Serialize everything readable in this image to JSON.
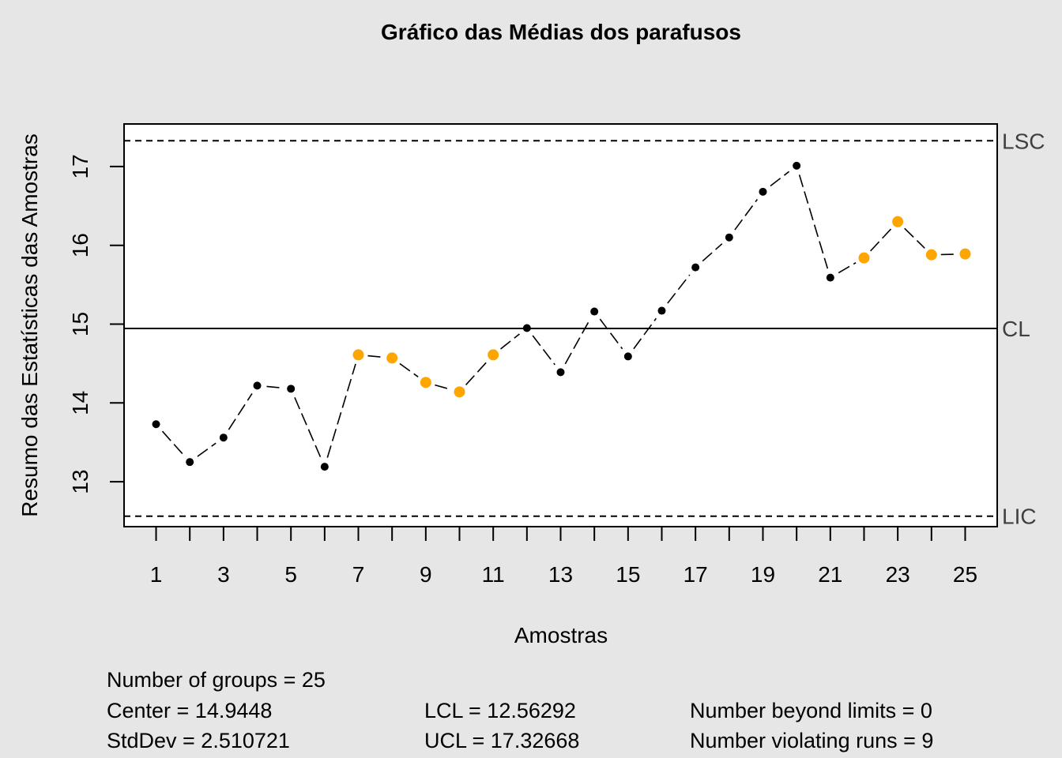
{
  "chart_data": {
    "type": "line",
    "title": "Gráfico das Médias dos parafusos",
    "xlabel": "Amostras",
    "ylabel": "Resumo das Estatísticas das Amostras",
    "x": [
      1,
      2,
      3,
      4,
      5,
      6,
      7,
      8,
      9,
      10,
      11,
      12,
      13,
      14,
      15,
      16,
      17,
      18,
      19,
      20,
      21,
      22,
      23,
      24,
      25
    ],
    "x_tick_labels": [
      "1",
      "3",
      "5",
      "7",
      "9",
      "11",
      "13",
      "15",
      "17",
      "19",
      "21",
      "23",
      "25"
    ],
    "y_tick_labels": [
      "13",
      "14",
      "15",
      "16",
      "17"
    ],
    "xlim": [
      0.05,
      25.95
    ],
    "ylim": [
      12.43,
      17.54
    ],
    "series": [
      {
        "values": [
          13.73,
          13.25,
          13.56,
          14.22,
          14.18,
          13.19,
          14.61,
          14.57,
          14.26,
          14.14,
          14.61,
          14.95,
          14.39,
          15.16,
          14.59,
          15.17,
          15.72,
          16.1,
          16.68,
          17.01,
          15.59,
          15.84,
          16.3,
          15.88,
          15.89
        ],
        "violating_runs": [
          7,
          8,
          9,
          10,
          11,
          22,
          23,
          24,
          25
        ]
      }
    ],
    "limits": {
      "ucl": 17.32668,
      "cl": 14.9448,
      "lcl": 12.56292,
      "ucl_label": "LSC",
      "cl_label": "CL",
      "lcl_label": "LIC"
    },
    "colors": {
      "background": "#e6e6e6",
      "plot_area": "#ffffff",
      "point": "#000000",
      "violation": "#ffa500"
    },
    "grid": false
  },
  "stats": {
    "groups": "Number of groups = 25",
    "center": "Center = 14.9448",
    "stddev": "StdDev = 2.510721",
    "lcl": "LCL = 12.56292",
    "ucl": "UCL = 17.32668",
    "beyond": "Number beyond limits = 0",
    "violating": "Number violating runs = 9"
  }
}
